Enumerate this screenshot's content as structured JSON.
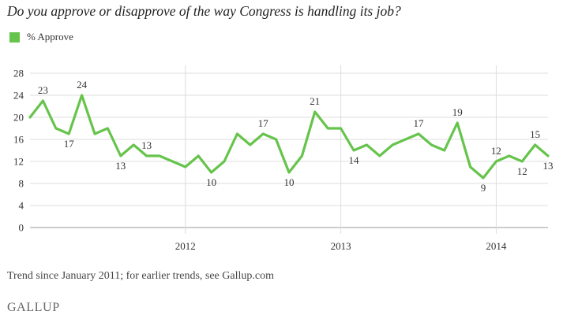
{
  "title": "Do you approve or disapprove of the way Congress is handling its job?",
  "legend": {
    "label": "% Approve"
  },
  "colors": {
    "series": "#66c44c",
    "grid": "#dcdcdc",
    "axis": "#999999",
    "text": "#333333"
  },
  "chart_data": {
    "type": "line",
    "series": [
      {
        "name": "% Approve",
        "values": [
          20,
          23,
          18,
          17,
          24,
          17,
          18,
          13,
          15,
          13,
          13,
          12,
          11,
          13,
          10,
          12,
          17,
          15,
          17,
          16,
          10,
          13,
          21,
          18,
          18,
          14,
          15,
          13,
          15,
          16,
          17,
          15,
          14,
          19,
          11,
          9,
          12,
          13,
          12,
          15,
          13
        ]
      }
    ],
    "labeled_points": [
      {
        "index": 1,
        "label": "23",
        "position": "above"
      },
      {
        "index": 3,
        "label": "17",
        "position": "below"
      },
      {
        "index": 4,
        "label": "24",
        "position": "above"
      },
      {
        "index": 7,
        "label": "13",
        "position": "below"
      },
      {
        "index": 9,
        "label": "13",
        "position": "above"
      },
      {
        "index": 14,
        "label": "10",
        "position": "below"
      },
      {
        "index": 18,
        "label": "17",
        "position": "above"
      },
      {
        "index": 20,
        "label": "10",
        "position": "below"
      },
      {
        "index": 22,
        "label": "21",
        "position": "above"
      },
      {
        "index": 25,
        "label": "14",
        "position": "below"
      },
      {
        "index": 30,
        "label": "17",
        "position": "above"
      },
      {
        "index": 33,
        "label": "19",
        "position": "above"
      },
      {
        "index": 35,
        "label": "9",
        "position": "below"
      },
      {
        "index": 36,
        "label": "12",
        "position": "above"
      },
      {
        "index": 38,
        "label": "12",
        "position": "below"
      },
      {
        "index": 39,
        "label": "15",
        "position": "above"
      },
      {
        "index": 40,
        "label": "13",
        "position": "below"
      }
    ],
    "ylim": [
      0,
      28
    ],
    "yticks": [
      0,
      4,
      8,
      12,
      16,
      20,
      24,
      28
    ],
    "xlim": [
      0,
      40
    ],
    "xticks": [
      {
        "index": 12,
        "label": "2012"
      },
      {
        "index": 24,
        "label": "2013"
      },
      {
        "index": 36,
        "label": "2014"
      }
    ],
    "grid": true,
    "legend_position": "top-left",
    "xlabel": "",
    "ylabel": ""
  },
  "footnote": "Trend since January 2011; for earlier trends, see Gallup.com",
  "brand": "GALLUP"
}
